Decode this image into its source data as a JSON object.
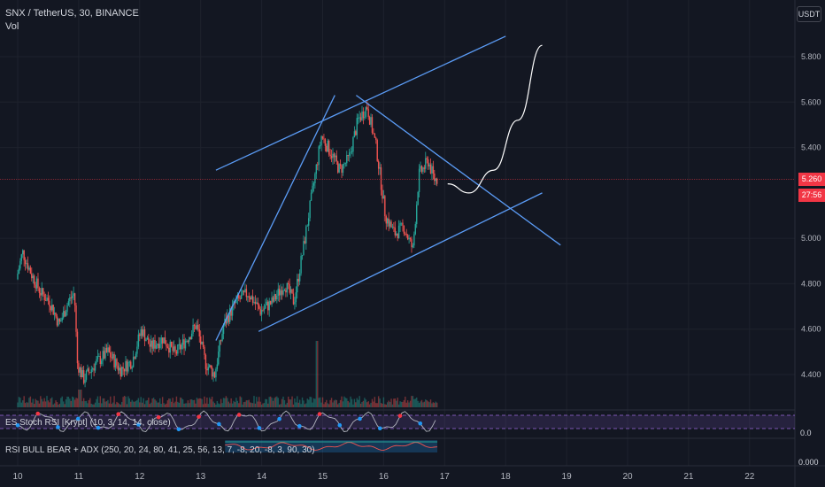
{
  "legend": {
    "symbol": "SNX / TetherUS, 30, BINANCE",
    "volume": "Vol"
  },
  "currency": "USDT",
  "price_tag": {
    "price": "5.260",
    "countdown": "27:56"
  },
  "indicators": {
    "stoch_rsi": {
      "label": "ES Stoch RSI [Krypt] (10, 3, 14, 14, close)",
      "value": "0.0"
    },
    "rsi_bull_bear": {
      "label": "RSI BULL BEAR + ADX (250, 20, 24, 80, 41, 25, 56, 13, 7, -8, 20, -8, 3, 90, 30)",
      "value": "0.000"
    }
  },
  "colors": {
    "background": "#131722",
    "bull": "#26a69a",
    "bear": "#ef5350",
    "trendline": "#5b9cf6",
    "projection": "#ffffff",
    "current_price": "#f23645"
  },
  "chart_data": {
    "type": "candlestick",
    "xaxis_ticks": [
      "10",
      "11",
      "12",
      "13",
      "14",
      "15",
      "16",
      "17",
      "18",
      "19",
      "20",
      "21",
      "22"
    ],
    "yaxis_ticks": [
      "5.800",
      "5.600",
      "5.400",
      "5.000",
      "4.800",
      "4.600",
      "4.400"
    ],
    "ylim": [
      4.3,
      5.95
    ],
    "current_price": 5.26,
    "path": [
      [
        10.0,
        4.82
      ],
      [
        10.1,
        4.94
      ],
      [
        10.25,
        4.84
      ],
      [
        10.4,
        4.76
      ],
      [
        10.55,
        4.72
      ],
      [
        10.7,
        4.62
      ],
      [
        10.85,
        4.72
      ],
      [
        10.95,
        4.76
      ],
      [
        11.0,
        4.45
      ],
      [
        11.1,
        4.38
      ],
      [
        11.3,
        4.45
      ],
      [
        11.5,
        4.5
      ],
      [
        11.7,
        4.42
      ],
      [
        11.9,
        4.46
      ],
      [
        12.05,
        4.6
      ],
      [
        12.2,
        4.52
      ],
      [
        12.4,
        4.56
      ],
      [
        12.6,
        4.49
      ],
      [
        12.8,
        4.56
      ],
      [
        12.95,
        4.62
      ],
      [
        13.1,
        4.45
      ],
      [
        13.25,
        4.4
      ],
      [
        13.4,
        4.62
      ],
      [
        13.6,
        4.72
      ],
      [
        13.8,
        4.76
      ],
      [
        14.0,
        4.68
      ],
      [
        14.2,
        4.72
      ],
      [
        14.4,
        4.8
      ],
      [
        14.55,
        4.72
      ],
      [
        14.7,
        4.95
      ],
      [
        14.85,
        5.2
      ],
      [
        15.0,
        5.45
      ],
      [
        15.15,
        5.38
      ],
      [
        15.3,
        5.3
      ],
      [
        15.45,
        5.35
      ],
      [
        15.6,
        5.52
      ],
      [
        15.75,
        5.58
      ],
      [
        15.9,
        5.4
      ],
      [
        16.05,
        5.1
      ],
      [
        16.2,
        5.02
      ],
      [
        16.35,
        5.05
      ],
      [
        16.5,
        4.95
      ],
      [
        16.6,
        5.28
      ],
      [
        16.75,
        5.34
      ],
      [
        16.85,
        5.26
      ]
    ],
    "trendlines": [
      {
        "x1": 13.25,
        "y1": 5.3,
        "x2": 18.0,
        "y2": 5.89
      },
      {
        "x1": 13.25,
        "y1": 4.55,
        "x2": 15.2,
        "y2": 5.63
      },
      {
        "x1": 15.55,
        "y1": 5.63,
        "x2": 18.9,
        "y2": 4.97
      },
      {
        "x1": 13.95,
        "y1": 4.59,
        "x2": 18.6,
        "y2": 5.2
      }
    ],
    "projection": [
      [
        17.05,
        5.24
      ],
      [
        17.4,
        5.2
      ],
      [
        17.8,
        5.3
      ],
      [
        18.2,
        5.52
      ],
      [
        18.6,
        5.85
      ]
    ]
  }
}
